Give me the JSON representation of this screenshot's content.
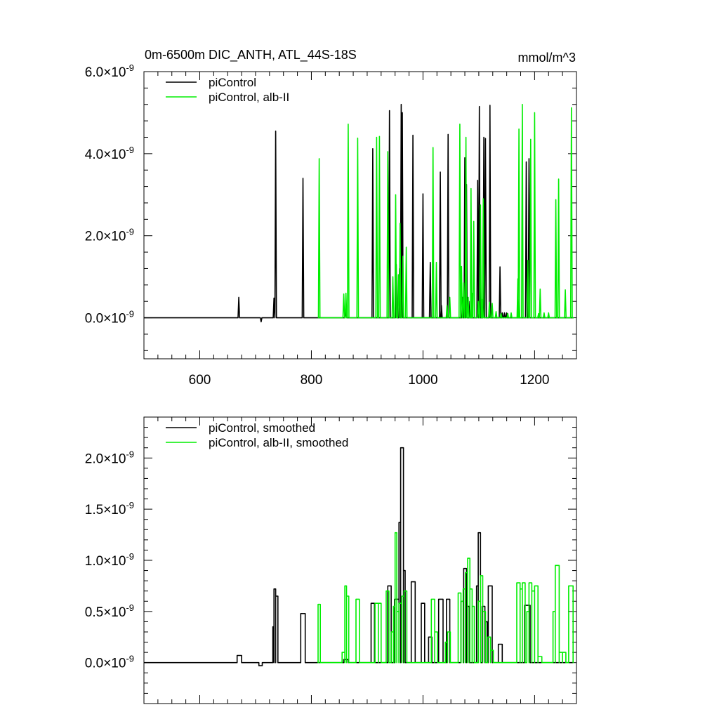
{
  "chart_data": [
    {
      "type": "line",
      "title": "0m-6500m DIC_ANTH, ATL_44S-18S",
      "units_label": "mmol/m^3",
      "xlim": [
        500,
        1275
      ],
      "ylim": [
        -1e-09,
        6e-09
      ],
      "x_ticks": [
        600,
        800,
        1000,
        1200
      ],
      "x_tick_labels": [
        "600",
        "800",
        "1000",
        "1200"
      ],
      "y_ticks": [
        0.0,
        2e-09,
        4e-09,
        6e-09
      ],
      "y_tick_labels": [
        {
          "mantissa": "0.0",
          "times": "×10",
          "exp": "-9"
        },
        {
          "mantissa": "2.0",
          "times": "×10",
          "exp": "-9"
        },
        {
          "mantissa": "4.0",
          "times": "×10",
          "exp": "-9"
        },
        {
          "mantissa": "6.0",
          "times": "×10",
          "exp": "-9"
        }
      ],
      "legend_position": "top-left",
      "series": [
        {
          "name": "piControl",
          "color": "#000000",
          "x_start": 500,
          "x_end": 1270,
          "baseline": 0,
          "spikes": [
            [
              670,
              5e-10
            ],
            [
              710,
              -1e-10
            ],
            [
              733,
              4.8e-10
            ],
            [
              736,
              4.55e-09
            ],
            [
              785,
              3.4e-09
            ],
            [
              862,
              2e-10
            ],
            [
              910,
              4.12e-09
            ],
            [
              940,
              5.05e-09
            ],
            [
              952,
              1.3e-09
            ],
            [
              958,
              1.2e-09
            ],
            [
              961,
              5.2e-09
            ],
            [
              963,
              5e-09
            ],
            [
              982,
              4.45e-09
            ],
            [
              1000,
              3.02e-09
            ],
            [
              1013,
              1.35e-09
            ],
            [
              1031,
              3.55e-09
            ],
            [
              1033,
              3e-10
            ],
            [
              1045,
              4.47e-09
            ],
            [
              1071,
              5e-10
            ],
            [
              1075,
              3.9e-09
            ],
            [
              1078,
              3.25e-09
            ],
            [
              1084,
              4e-10
            ],
            [
              1098,
              3.35e-09
            ],
            [
              1101,
              5.15e-09
            ],
            [
              1109,
              4.4e-09
            ],
            [
              1112,
              4.37e-09
            ],
            [
              1120,
              5.18e-09
            ],
            [
              1138,
              1.24e-09
            ],
            [
              1142,
              1.2e-10
            ],
            [
              1146,
              1.2e-10
            ],
            [
              1150,
              1.2e-10
            ],
            [
              1160,
              0.0
            ],
            [
              1185,
              3.8e-09
            ],
            [
              1190,
              3.88e-09
            ]
          ]
        },
        {
          "name": "piControl, alb-II",
          "color": "#00ee00",
          "x_start": 814,
          "x_end": 1270,
          "baseline": 0,
          "spikes": [
            [
              814,
              3.88e-09
            ],
            [
              858,
              5.8e-10
            ],
            [
              862,
              6e-10
            ],
            [
              866,
              4.72e-09
            ],
            [
              883,
              4.38e-09
            ],
            [
              917,
              4.4e-09
            ],
            [
              922,
              4.42e-09
            ],
            [
              937,
              4.05e-09
            ],
            [
              946,
              1e-09
            ],
            [
              951,
              3e-09
            ],
            [
              956,
              1.05e-09
            ],
            [
              959,
              2.3e-09
            ],
            [
              964,
              1.5e-09
            ],
            [
              970,
              1.72e-09
            ],
            [
              1018,
              4.15e-09
            ],
            [
              1024,
              1.35e-09
            ],
            [
              1043,
              3e-10
            ],
            [
              1048,
              5e-10
            ],
            [
              1066,
              4.72e-09
            ],
            [
              1069,
              1.25e-09
            ],
            [
              1073,
              8.5e-10
            ],
            [
              1077,
              4.4e-09
            ],
            [
              1081,
              5e-10
            ],
            [
              1086,
              3.15e-09
            ],
            [
              1088,
              6e-10
            ],
            [
              1091,
              2.35e-09
            ],
            [
              1099,
              4e-10
            ],
            [
              1103,
              2.75e-09
            ],
            [
              1106,
              4.5e-10
            ],
            [
              1108,
              2.9e-09
            ],
            [
              1119,
              3.8e-10
            ],
            [
              1124,
              3.5e-10
            ],
            [
              1131,
              1.5e-10
            ],
            [
              1140,
              1e-10
            ],
            [
              1152,
              1e-10
            ],
            [
              1158,
              1.2e-10
            ],
            [
              1170,
              9.5e-10
            ],
            [
              1172,
              4.6e-09
            ],
            [
              1178,
              5.2e-09
            ],
            [
              1188,
              1.4e-09
            ],
            [
              1193,
              4.35e-09
            ],
            [
              1200,
              5e-09
            ],
            [
              1207,
              1e-10
            ],
            [
              1210,
              7e-10
            ],
            [
              1217,
              1.2e-10
            ],
            [
              1225,
              1.2e-10
            ],
            [
              1238,
              2.88e-09
            ],
            [
              1243,
              3.38e-09
            ],
            [
              1255,
              6.8e-10
            ],
            [
              1266,
              5.12e-09
            ]
          ]
        }
      ]
    },
    {
      "type": "line",
      "xlim": [
        500,
        1275
      ],
      "ylim": [
        -4e-10,
        2.4e-09
      ],
      "x_ticks": [
        600,
        800,
        1000,
        1200
      ],
      "y_ticks": [
        0.0,
        5e-10,
        1e-09,
        1.5e-09,
        2e-09
      ],
      "y_tick_labels": [
        {
          "mantissa": "0.0",
          "times": "×10",
          "exp": "-9"
        },
        {
          "mantissa": "0.5",
          "times": "×10",
          "exp": "-9"
        },
        {
          "mantissa": "1.0",
          "times": "×10",
          "exp": "-9"
        },
        {
          "mantissa": "1.5",
          "times": "×10",
          "exp": "-9"
        },
        {
          "mantissa": "2.0",
          "times": "×10",
          "exp": "-9"
        }
      ],
      "legend_position": "top-left",
      "series": [
        {
          "name": "piControl, smoothed",
          "color": "#000000",
          "x_start": 500,
          "x_end": 1270,
          "baseline": 0,
          "blocks": [
            [
              667,
              675,
              7e-11
            ],
            [
              706,
              712,
              -3e-11
            ],
            [
              731,
              733,
              3.5e-10
            ],
            [
              733,
              736,
              7.2e-10
            ],
            [
              736,
              740,
              6.5e-10
            ],
            [
              781,
              789,
              4.8e-10
            ],
            [
              858,
              866,
              3e-11
            ],
            [
              907,
              913,
              5.8e-10
            ],
            [
              937,
              943,
              7.5e-10
            ],
            [
              949,
              957,
              6.2e-10
            ],
            [
              957,
              960,
              1.37e-09
            ],
            [
              960,
              965,
              2.1e-09
            ],
            [
              965,
              968,
              9e-10
            ],
            [
              979,
              986,
              7.9e-10
            ],
            [
              997,
              1003,
              5.8e-10
            ],
            [
              1010,
              1016,
              2.5e-10
            ],
            [
              1028,
              1036,
              6.2e-10
            ],
            [
              1042,
              1048,
              6.2e-10
            ],
            [
              1068,
              1073,
              6e-10
            ],
            [
              1073,
              1078,
              9.2e-10
            ],
            [
              1078,
              1083,
              5.5e-10
            ],
            [
              1096,
              1099,
              7.5e-10
            ],
            [
              1099,
              1103,
              1.27e-09
            ],
            [
              1106,
              1111,
              5.5e-10
            ],
            [
              1111,
              1115,
              4e-10
            ],
            [
              1117,
              1124,
              7.5e-10
            ],
            [
              1135,
              1142,
              1.8e-10
            ],
            [
              1182,
              1192,
              5.6e-10
            ]
          ]
        },
        {
          "name": "piControl, alb-II, smoothed",
          "color": "#00ee00",
          "x_start": 814,
          "x_end": 1270,
          "baseline": 0,
          "blocks": [
            [
              812,
              816,
              5.7e-10
            ],
            [
              855,
              860,
              1e-10
            ],
            [
              860,
              863,
              7.5e-10
            ],
            [
              863,
              867,
              6.5e-10
            ],
            [
              880,
              886,
              6.2e-10
            ],
            [
              914,
              920,
              5.8e-10
            ],
            [
              920,
              925,
              5.8e-10
            ],
            [
              934,
              939,
              7e-10
            ],
            [
              943,
              947,
              3e-10
            ],
            [
              947,
              950,
              5.5e-10
            ],
            [
              950,
              953,
              1.27e-09
            ],
            [
              953,
              957,
              5e-10
            ],
            [
              957,
              962,
              5.8e-10
            ],
            [
              962,
              966,
              6.5e-10
            ],
            [
              966,
              971,
              7e-10
            ],
            [
              1015,
              1021,
              6.2e-10
            ],
            [
              1021,
              1026,
              3e-10
            ],
            [
              1040,
              1044,
              2e-10
            ],
            [
              1044,
              1049,
              3e-10
            ],
            [
              1063,
              1068,
              6.8e-10
            ],
            [
              1068,
              1072,
              6e-10
            ],
            [
              1072,
              1076,
              7.2e-10
            ],
            [
              1076,
              1080,
              8.8e-10
            ],
            [
              1080,
              1084,
              1.02e-09
            ],
            [
              1084,
              1088,
              7.2e-10
            ],
            [
              1088,
              1092,
              5.5e-10
            ],
            [
              1099,
              1103,
              6e-10
            ],
            [
              1103,
              1107,
              8.5e-10
            ],
            [
              1107,
              1112,
              5e-10
            ],
            [
              1116,
              1121,
              2.5e-10
            ],
            [
              1121,
              1126,
              1.2e-10
            ],
            [
              1168,
              1174,
              7.8e-10
            ],
            [
              1174,
              1178,
              7.2e-10
            ],
            [
              1178,
              1183,
              7.8e-10
            ],
            [
              1186,
              1190,
              5e-10
            ],
            [
              1190,
              1195,
              7.8e-10
            ],
            [
              1195,
              1200,
              7e-10
            ],
            [
              1200,
              1206,
              7.5e-10
            ],
            [
              1206,
              1213,
              6e-11
            ],
            [
              1233,
              1237,
              5e-10
            ],
            [
              1237,
              1244,
              9.5e-10
            ],
            [
              1244,
              1250,
              1e-10
            ],
            [
              1250,
              1256,
              1e-10
            ],
            [
              1261,
              1269,
              7.5e-10
            ]
          ]
        }
      ]
    }
  ]
}
